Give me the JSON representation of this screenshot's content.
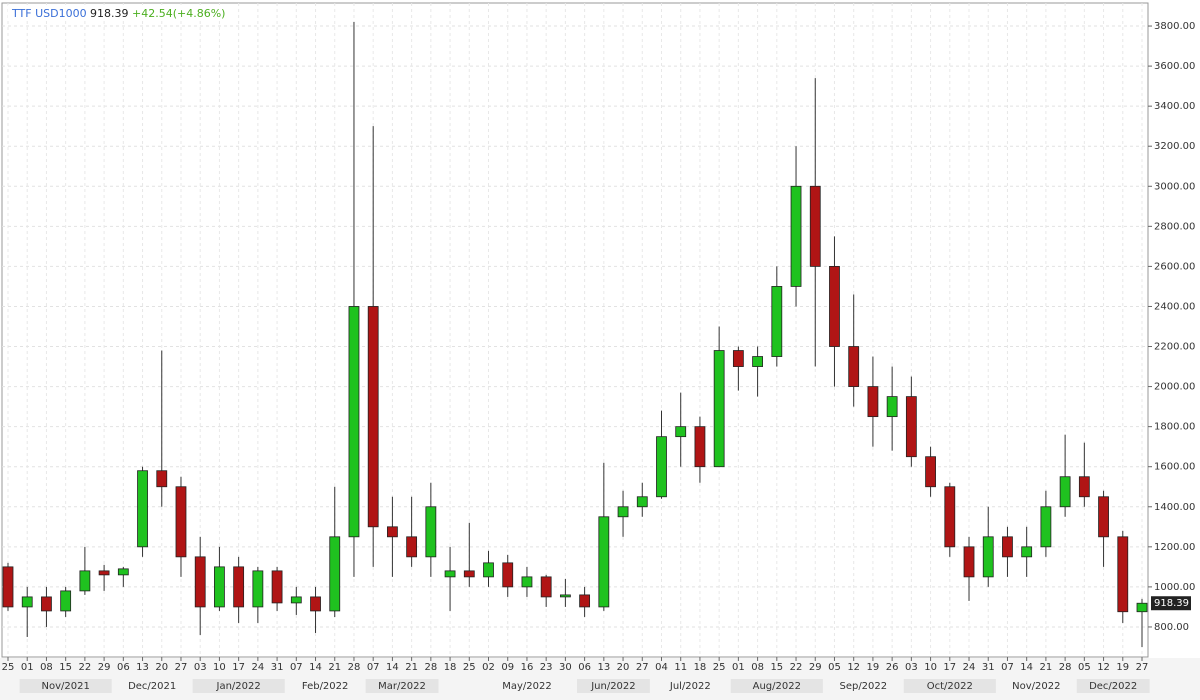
{
  "chart_data": {
    "type": "candlestick",
    "symbol": "TTF USD1000",
    "last_price": 918.39,
    "change": "+42.54(+4.86%)",
    "up_color": "#1fc21f",
    "down_color": "#b01515",
    "grid": true,
    "ylim": [
      650,
      3910
    ],
    "yticks": [
      {
        "value": 800,
        "label": "800.00"
      },
      {
        "value": 1000,
        "label": "1000.00"
      },
      {
        "value": 1200,
        "label": "1200.00"
      },
      {
        "value": 1400,
        "label": "1400.00"
      },
      {
        "value": 1600,
        "label": "1600.00"
      },
      {
        "value": 1800,
        "label": "1800.00"
      },
      {
        "value": 2000,
        "label": "2000.00"
      },
      {
        "value": 2200,
        "label": "2200.00"
      },
      {
        "value": 2400,
        "label": "2400.00"
      },
      {
        "value": 2600,
        "label": "2600.00"
      },
      {
        "value": 2800,
        "label": "2800.00"
      },
      {
        "value": 3000,
        "label": "3000.00"
      },
      {
        "value": 3200,
        "label": "3200.00"
      },
      {
        "value": 3400,
        "label": "3400.00"
      },
      {
        "value": 3600,
        "label": "3600.00"
      },
      {
        "value": 3800,
        "label": "3800.00"
      }
    ],
    "xticks": [
      {
        "value": "2021-10-25",
        "label": "25"
      },
      {
        "value": "2021-11-01",
        "label": "01"
      },
      {
        "value": "2021-11-08",
        "label": "08"
      },
      {
        "value": "2021-11-15",
        "label": "15"
      },
      {
        "value": "2021-11-22",
        "label": "22"
      },
      {
        "value": "2021-11-29",
        "label": "29"
      },
      {
        "value": "2021-12-06",
        "label": "06"
      },
      {
        "value": "2021-12-13",
        "label": "13"
      },
      {
        "value": "2021-12-20",
        "label": "20"
      },
      {
        "value": "2021-12-27",
        "label": "27"
      },
      {
        "value": "2022-01-03",
        "label": "03"
      },
      {
        "value": "2022-01-10",
        "label": "10"
      },
      {
        "value": "2022-01-17",
        "label": "17"
      },
      {
        "value": "2022-01-24",
        "label": "24"
      },
      {
        "value": "2022-01-31",
        "label": "31"
      },
      {
        "value": "2022-02-07",
        "label": "07"
      },
      {
        "value": "2022-02-14",
        "label": "14"
      },
      {
        "value": "2022-02-21",
        "label": "21"
      },
      {
        "value": "2022-02-28",
        "label": "28"
      },
      {
        "value": "2022-03-07",
        "label": "07"
      },
      {
        "value": "2022-03-14",
        "label": "14"
      },
      {
        "value": "2022-03-21",
        "label": "21"
      },
      {
        "value": "2022-03-28",
        "label": "28"
      },
      {
        "value": "2022-04-18",
        "label": "18"
      },
      {
        "value": "2022-04-25",
        "label": "25"
      },
      {
        "value": "2022-05-02",
        "label": "02"
      },
      {
        "value": "2022-05-09",
        "label": "09"
      },
      {
        "value": "2022-05-16",
        "label": "16"
      },
      {
        "value": "2022-05-23",
        "label": "23"
      },
      {
        "value": "2022-05-30",
        "label": "30"
      },
      {
        "value": "2022-06-06",
        "label": "06"
      },
      {
        "value": "2022-06-13",
        "label": "13"
      },
      {
        "value": "2022-06-20",
        "label": "20"
      },
      {
        "value": "2022-06-27",
        "label": "27"
      },
      {
        "value": "2022-07-04",
        "label": "04"
      },
      {
        "value": "2022-07-11",
        "label": "11"
      },
      {
        "value": "2022-07-18",
        "label": "18"
      },
      {
        "value": "2022-07-25",
        "label": "25"
      },
      {
        "value": "2022-08-01",
        "label": "01"
      },
      {
        "value": "2022-08-08",
        "label": "08"
      },
      {
        "value": "2022-08-15",
        "label": "15"
      },
      {
        "value": "2022-08-22",
        "label": "22"
      },
      {
        "value": "2022-08-29",
        "label": "29"
      },
      {
        "value": "2022-09-05",
        "label": "05"
      },
      {
        "value": "2022-09-12",
        "label": "12"
      },
      {
        "value": "2022-09-19",
        "label": "19"
      },
      {
        "value": "2022-09-26",
        "label": "26"
      },
      {
        "value": "2022-10-03",
        "label": "03"
      },
      {
        "value": "2022-10-10",
        "label": "10"
      },
      {
        "value": "2022-10-17",
        "label": "17"
      },
      {
        "value": "2022-10-24",
        "label": "24"
      },
      {
        "value": "2022-10-31",
        "label": "31"
      },
      {
        "value": "2022-11-07",
        "label": "07"
      },
      {
        "value": "2022-11-14",
        "label": "14"
      },
      {
        "value": "2022-11-21",
        "label": "21"
      },
      {
        "value": "2022-11-28",
        "label": "28"
      },
      {
        "value": "2022-12-05",
        "label": "05"
      },
      {
        "value": "2022-12-12",
        "label": "12"
      },
      {
        "value": "2022-12-19",
        "label": "19"
      },
      {
        "value": "2022-12-27",
        "label": "27"
      }
    ],
    "months": [
      "Nov/2021",
      "Dec/2021",
      "Jan/2022",
      "Feb/2022",
      "Mar/2022",
      "May/2022",
      "Jun/2022",
      "Jul/2022",
      "Aug/2022",
      "Sep/2022",
      "Oct/2022",
      "Nov/2022",
      "Dec/2022"
    ],
    "x": [
      "2021-10-25",
      "2021-11-01",
      "2021-11-08",
      "2021-11-15",
      "2021-11-22",
      "2021-11-29",
      "2021-12-06",
      "2021-12-13",
      "2021-12-20",
      "2021-12-27",
      "2022-01-03",
      "2022-01-10",
      "2022-01-17",
      "2022-01-24",
      "2022-01-31",
      "2022-02-07",
      "2022-02-14",
      "2022-02-21",
      "2022-02-28",
      "2022-03-07",
      "2022-03-14",
      "2022-03-21",
      "2022-03-28",
      "2022-04-18",
      "2022-04-25",
      "2022-05-02",
      "2022-05-09",
      "2022-05-16",
      "2022-05-23",
      "2022-05-30",
      "2022-06-06",
      "2022-06-13",
      "2022-06-20",
      "2022-06-27",
      "2022-07-04",
      "2022-07-11",
      "2022-07-18",
      "2022-07-25",
      "2022-08-01",
      "2022-08-08",
      "2022-08-15",
      "2022-08-22",
      "2022-08-29",
      "2022-09-05",
      "2022-09-12",
      "2022-09-19",
      "2022-09-26",
      "2022-10-03",
      "2022-10-10",
      "2022-10-17",
      "2022-10-24",
      "2022-10-31",
      "2022-11-07",
      "2022-11-14",
      "2022-11-21",
      "2022-11-28",
      "2022-12-05",
      "2022-12-12",
      "2022-12-19",
      "2022-12-27"
    ],
    "open": [
      1100,
      900,
      950,
      880,
      980,
      1080,
      1060,
      1200,
      1580,
      1500,
      1150,
      900,
      1100,
      900,
      1080,
      920,
      950,
      880,
      1250,
      2400,
      1300,
      1250,
      1150,
      1050,
      1080,
      1050,
      1120,
      1000,
      1050,
      950,
      960,
      900,
      1350,
      1400,
      1450,
      1750,
      1800,
      1600,
      2180,
      2100,
      2150,
      2500,
      3000,
      2600,
      2200,
      2000,
      1850,
      1950,
      1650,
      1500,
      1200,
      1050,
      1250,
      1150,
      1200,
      1400,
      1550,
      1450,
      1250,
      876
    ],
    "high": [
      1120,
      1000,
      1000,
      1000,
      1200,
      1110,
      1100,
      1600,
      2180,
      1550,
      1250,
      1200,
      1150,
      1100,
      1100,
      1000,
      1000,
      1500,
      3820,
      3300,
      1450,
      1450,
      1520,
      1200,
      1320,
      1180,
      1160,
      1100,
      1060,
      1040,
      1000,
      1620,
      1480,
      1520,
      1880,
      1970,
      1850,
      2300,
      2200,
      2200,
      2600,
      3200,
      3540,
      2750,
      2460,
      2150,
      2100,
      2050,
      1700,
      1520,
      1250,
      1400,
      1300,
      1300,
      1480,
      1760,
      1720,
      1480,
      1280,
      940
    ],
    "low": [
      880,
      750,
      800,
      850,
      960,
      980,
      1000,
      1150,
      1400,
      1050,
      760,
      880,
      820,
      820,
      880,
      860,
      770,
      850,
      1050,
      1100,
      1050,
      1100,
      1050,
      880,
      1000,
      1000,
      950,
      950,
      900,
      900,
      850,
      880,
      1250,
      1350,
      1440,
      1600,
      1520,
      1600,
      1980,
      1950,
      2100,
      2400,
      2100,
      2000,
      1900,
      1700,
      1680,
      1600,
      1450,
      1150,
      930,
      1000,
      1050,
      1050,
      1150,
      1350,
      1400,
      1100,
      820,
      700
    ],
    "close": [
      900,
      950,
      880,
      980,
      1080,
      1060,
      1090,
      1580,
      1500,
      1150,
      900,
      1100,
      900,
      1080,
      920,
      950,
      880,
      1250,
      2400,
      1300,
      1250,
      1150,
      1400,
      1080,
      1050,
      1120,
      1000,
      1050,
      950,
      960,
      900,
      1350,
      1400,
      1450,
      1750,
      1800,
      1600,
      2180,
      2100,
      2150,
      2500,
      3000,
      2600,
      2200,
      2000,
      1850,
      1950,
      1650,
      1500,
      1200,
      1050,
      1250,
      1150,
      1200,
      1400,
      1550,
      1450,
      1250,
      876,
      918.39
    ]
  }
}
